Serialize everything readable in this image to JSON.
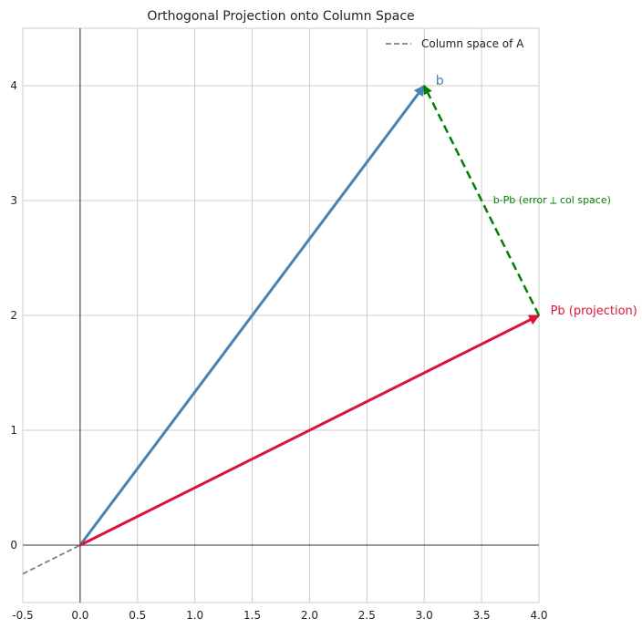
{
  "chart_data": {
    "type": "line",
    "title": "Orthogonal Projection onto Column Space",
    "xlabel": "",
    "ylabel": "",
    "xlim": [
      -0.5,
      4.0
    ],
    "ylim": [
      -0.5,
      4.5
    ],
    "xticks": [
      "-0.5",
      "0.0",
      "0.5",
      "1.0",
      "1.5",
      "2.0",
      "2.5",
      "3.0",
      "3.5",
      "4.0"
    ],
    "xtick_values": [
      -0.5,
      0,
      0.5,
      1,
      1.5,
      2,
      2.5,
      3,
      3.5,
      4
    ],
    "yticks": [
      "0",
      "1",
      "2",
      "3",
      "4"
    ],
    "ytick_values": [
      0,
      1,
      2,
      3,
      4
    ],
    "grid": true,
    "legend": {
      "placement": "top-right",
      "entries": [
        "Column space of A"
      ]
    },
    "series": [
      {
        "name": "Column space of A",
        "kind": "dashed-line",
        "color": "#808080",
        "x": [
          -0.5,
          4.0
        ],
        "y": [
          -0.25,
          2.0
        ]
      },
      {
        "kind": "arrow",
        "label": "b",
        "color": "#4682b4",
        "from": [
          0,
          0
        ],
        "to": [
          3,
          4
        ]
      },
      {
        "kind": "arrow",
        "label": "Pb (projection)",
        "color": "#dc143c",
        "from": [
          0,
          0
        ],
        "to": [
          4,
          2
        ]
      },
      {
        "kind": "dashed-arrow",
        "label": "b-Pb (error ⟂ col space)",
        "color": "#008000",
        "from": [
          4,
          2
        ],
        "to": [
          3,
          4
        ]
      }
    ]
  }
}
